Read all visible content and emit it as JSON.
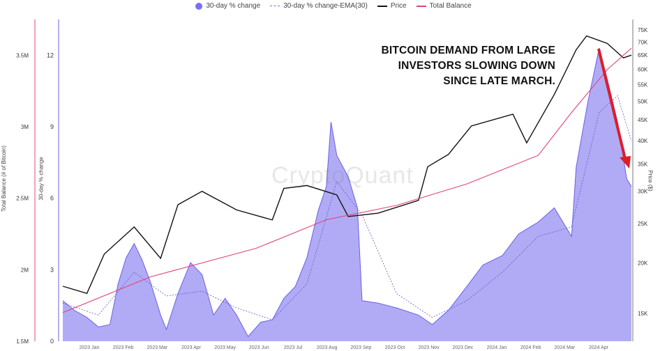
{
  "legend": {
    "items": [
      {
        "label": "30-day % change",
        "color": "#7b6ef6",
        "style": "dot"
      },
      {
        "label": "30-day % change-EMA(30)",
        "color": "#6e6bd8",
        "style": "dash"
      },
      {
        "label": "Price",
        "color": "#111111",
        "style": "line"
      },
      {
        "label": "Total Balance",
        "color": "#e0447a",
        "style": "line"
      }
    ]
  },
  "annotation": {
    "line1": "BITCOIN DEMAND FROM LARGE",
    "line2": "INVESTORS SLOWING DOWN",
    "line3": "SINCE LATE MARCH."
  },
  "watermark": "CryptoQuant",
  "axes": {
    "left_outer_label": "Total Balance (# of Bitcoin)",
    "left_inner_label": "30-day % change",
    "right_label": "Price ($)",
    "balance_ticks": [
      "3.5M",
      "3M",
      "2.5M",
      "2M",
      "1.5M"
    ],
    "pct_ticks": [
      "12",
      "9",
      "6",
      "3",
      "0"
    ],
    "price_ticks": [
      "75K",
      "70K",
      "65K",
      "60K",
      "55K",
      "50K",
      "45K",
      "40K",
      "35K",
      "30K",
      "25K",
      "20K",
      "15K"
    ],
    "x_ticks": [
      "2023 Jan",
      "2023 Feb",
      "2023 Mar",
      "2023 Apr",
      "2023 May",
      "2023 Jun",
      "2023 Jul",
      "2023 Aug",
      "2023 Sep",
      "2023 Oct",
      "2023 Nov",
      "2023 Dec",
      "2024 Jan",
      "2024 Feb",
      "2024 Mar",
      "2024 Apr"
    ]
  },
  "colors": {
    "area_fill": "#a9a2f4",
    "area_line": "#6a5fe8",
    "ema": "#5b57c9",
    "price": "#111111",
    "balance": "#e0447a",
    "arrow": "#e01d24",
    "left_axis": "#e0447a",
    "inner_axis": "#6a5fe8"
  },
  "chart_data": {
    "type": "area",
    "x_range": [
      "2022-12-15",
      "2024-04-22"
    ],
    "series": [
      {
        "name": "30-day % change",
        "axis": "30-day % change",
        "points": [
          [
            "2022-12-15",
            1.7
          ],
          [
            "2022-12-25",
            1.3
          ],
          [
            "2023-01-05",
            1.0
          ],
          [
            "2023-01-15",
            0.6
          ],
          [
            "2023-01-25",
            0.7
          ],
          [
            "2023-02-01",
            2.4
          ],
          [
            "2023-02-08",
            3.5
          ],
          [
            "2023-02-15",
            4.1
          ],
          [
            "2023-02-22",
            3.4
          ],
          [
            "2023-03-01",
            2.5
          ],
          [
            "2023-03-10",
            1.1
          ],
          [
            "2023-03-15",
            0.5
          ],
          [
            "2023-03-25",
            2.0
          ],
          [
            "2023-04-05",
            3.3
          ],
          [
            "2023-04-15",
            2.8
          ],
          [
            "2023-04-25",
            1.1
          ],
          [
            "2023-05-05",
            1.8
          ],
          [
            "2023-05-15",
            1.1
          ],
          [
            "2023-05-25",
            0.2
          ],
          [
            "2023-06-05",
            0.8
          ],
          [
            "2023-06-15",
            0.9
          ],
          [
            "2023-06-25",
            1.8
          ],
          [
            "2023-07-05",
            2.3
          ],
          [
            "2023-07-15",
            3.5
          ],
          [
            "2023-07-25",
            5.5
          ],
          [
            "2023-08-01",
            6.5
          ],
          [
            "2023-08-05",
            9.2
          ],
          [
            "2023-08-10",
            7.8
          ],
          [
            "2023-08-20",
            6.9
          ],
          [
            "2023-08-28",
            5.6
          ],
          [
            "2023-09-01",
            1.7
          ],
          [
            "2023-09-15",
            1.6
          ],
          [
            "2023-10-01",
            1.4
          ],
          [
            "2023-10-20",
            1.1
          ],
          [
            "2023-11-01",
            0.7
          ],
          [
            "2023-11-15",
            1.3
          ],
          [
            "2023-12-01",
            2.3
          ],
          [
            "2023-12-15",
            3.2
          ],
          [
            "2024-01-01",
            3.6
          ],
          [
            "2024-01-15",
            4.5
          ],
          [
            "2024-02-01",
            5.0
          ],
          [
            "2024-02-15",
            5.6
          ],
          [
            "2024-03-01",
            4.4
          ],
          [
            "2024-03-05",
            7.3
          ],
          [
            "2024-03-15",
            10.0
          ],
          [
            "2024-03-25",
            12.3
          ],
          [
            "2024-04-01",
            11.0
          ],
          [
            "2024-04-10",
            9.2
          ],
          [
            "2024-04-18",
            6.8
          ],
          [
            "2024-04-22",
            6.5
          ]
        ]
      },
      {
        "name": "30-day % change-EMA(30)",
        "axis": "30-day % change",
        "points": [
          [
            "2022-12-15",
            1.6
          ],
          [
            "2023-01-15",
            1.1
          ],
          [
            "2023-02-15",
            2.9
          ],
          [
            "2023-03-15",
            1.9
          ],
          [
            "2023-04-15",
            2.1
          ],
          [
            "2023-05-15",
            1.4
          ],
          [
            "2023-06-15",
            0.9
          ],
          [
            "2023-07-15",
            2.4
          ],
          [
            "2023-08-10",
            6.7
          ],
          [
            "2023-09-01",
            5.3
          ],
          [
            "2023-10-01",
            2.0
          ],
          [
            "2023-11-01",
            1.0
          ],
          [
            "2023-12-01",
            1.7
          ],
          [
            "2024-01-01",
            2.9
          ],
          [
            "2024-02-01",
            4.4
          ],
          [
            "2024-03-01",
            4.8
          ],
          [
            "2024-03-25",
            9.6
          ],
          [
            "2024-04-10",
            10.3
          ],
          [
            "2024-04-22",
            8.4
          ]
        ]
      },
      {
        "name": "Price",
        "axis": "Price ($)",
        "points": [
          [
            "2022-12-15",
            17500
          ],
          [
            "2023-01-05",
            16800
          ],
          [
            "2023-01-20",
            21000
          ],
          [
            "2023-02-15",
            24500
          ],
          [
            "2023-03-10",
            20500
          ],
          [
            "2023-03-25",
            27800
          ],
          [
            "2023-04-15",
            30000
          ],
          [
            "2023-05-15",
            27000
          ],
          [
            "2023-06-15",
            25500
          ],
          [
            "2023-06-25",
            30500
          ],
          [
            "2023-07-15",
            31000
          ],
          [
            "2023-08-10",
            29400
          ],
          [
            "2023-08-20",
            26000
          ],
          [
            "2023-09-15",
            26500
          ],
          [
            "2023-10-20",
            28500
          ],
          [
            "2023-10-28",
            34500
          ],
          [
            "2023-11-15",
            37000
          ],
          [
            "2023-12-05",
            43500
          ],
          [
            "2024-01-10",
            46500
          ],
          [
            "2024-01-22",
            39500
          ],
          [
            "2024-02-15",
            52000
          ],
          [
            "2024-03-05",
            67000
          ],
          [
            "2024-03-14",
            72500
          ],
          [
            "2024-04-01",
            69500
          ],
          [
            "2024-04-15",
            64000
          ],
          [
            "2024-04-22",
            65000
          ]
        ]
      },
      {
        "name": "Total Balance",
        "axis": "Total Balance (# of Bitcoin)",
        "points": [
          [
            "2022-12-15",
            1700000
          ],
          [
            "2023-03-01",
            1950000
          ],
          [
            "2023-06-01",
            2150000
          ],
          [
            "2023-08-01",
            2350000
          ],
          [
            "2023-10-01",
            2450000
          ],
          [
            "2023-12-01",
            2600000
          ],
          [
            "2024-02-01",
            2800000
          ],
          [
            "2024-03-01",
            3100000
          ],
          [
            "2024-04-01",
            3400000
          ],
          [
            "2024-04-22",
            3550000
          ]
        ]
      }
    ],
    "y_ranges": {
      "30-day % change": [
        0,
        13.5
      ],
      "Price ($)": [
        15000,
        75000
      ],
      "Total Balance (# of Bitcoin)": [
        1500000,
        3750000
      ]
    },
    "price_scale": "log",
    "grid": false,
    "legend_position": "top-center"
  }
}
